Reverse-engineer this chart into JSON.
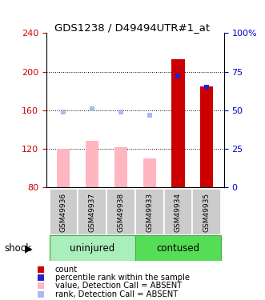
{
  "title": "GDS1238 / D49494UTR#1_at",
  "samples": [
    "GSM49936",
    "GSM49937",
    "GSM49938",
    "GSM49933",
    "GSM49934",
    "GSM49935"
  ],
  "groups": [
    "uninjured",
    "uninjured",
    "uninjured",
    "contused",
    "contused",
    "contused"
  ],
  "ylim_left": [
    80,
    240
  ],
  "ylim_right": [
    0,
    100
  ],
  "yticks_left": [
    80,
    120,
    160,
    200,
    240
  ],
  "yticks_right": [
    0,
    25,
    50,
    75,
    100
  ],
  "ytick_labels_left": [
    "80",
    "120",
    "160",
    "200",
    "240"
  ],
  "ytick_labels_right": [
    "0",
    "25",
    "50",
    "75",
    "100%"
  ],
  "bar_color_absent": "#FFB6C1",
  "bar_color_present": "#CC0000",
  "rank_color_absent": "#AABBEE",
  "rank_color_present": "#2222CC",
  "values_absent": [
    120,
    128,
    122,
    110,
    null,
    null
  ],
  "values_present": [
    null,
    null,
    null,
    null,
    213,
    185
  ],
  "ranks_absent_pct": [
    49,
    51,
    49,
    47,
    null,
    null
  ],
  "ranks_present_pct": [
    null,
    null,
    null,
    null,
    72,
    65
  ],
  "bg_color": "#ffffff",
  "axis_color_left": "#CC0000",
  "axis_color_right": "#0000CC",
  "bar_width": 0.45,
  "sample_bg": "#CCCCCC",
  "uninjured_color": "#AAEEBB",
  "contused_color": "#55DD55",
  "group_border": "#44AA44"
}
